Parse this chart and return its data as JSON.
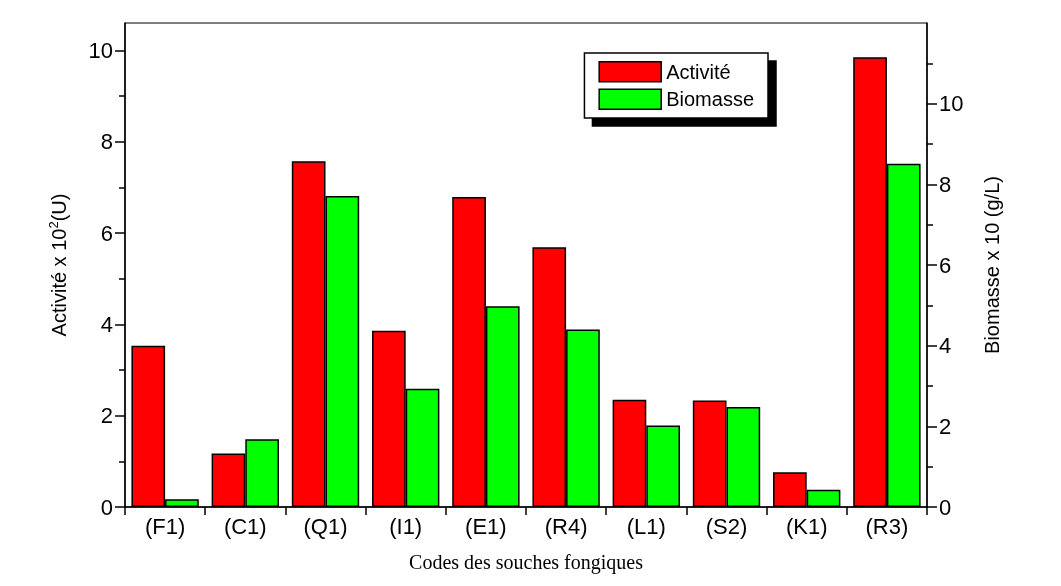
{
  "chart_data": {
    "type": "bar",
    "xlabel": "Codes des souches fongiques",
    "ylabel": "Activité x 10$^{2}$(U)",
    "y2label": "Biomasse x 10 (g/L)",
    "categories": [
      "(F1)",
      "(C1)",
      "(Q1)",
      "(I1)",
      "(E1)",
      "(R4)",
      "(L1)",
      "(S2)",
      "(K1)",
      "(R3)"
    ],
    "series": [
      {
        "name": "Activité",
        "color": "#ff0000",
        "values": [
          3.53,
          1.17,
          7.57,
          3.86,
          6.79,
          5.69,
          2.35,
          2.33,
          0.76,
          9.85
        ]
      },
      {
        "name": "Biomasse",
        "color": "#00ff00",
        "axis": "y2",
        "values": [
          0.19,
          1.68,
          7.71,
          2.93,
          4.98,
          4.4,
          2.02,
          2.48,
          0.43,
          8.51
        ]
      }
    ],
    "ylim": [
      0,
      10.6
    ],
    "yticks": [
      0,
      2,
      4,
      6,
      8,
      10
    ],
    "y2lim": [
      0,
      12
    ],
    "y2ticks": [
      0,
      2,
      4,
      6,
      8,
      10
    ],
    "grid": false,
    "legend": "top right"
  }
}
